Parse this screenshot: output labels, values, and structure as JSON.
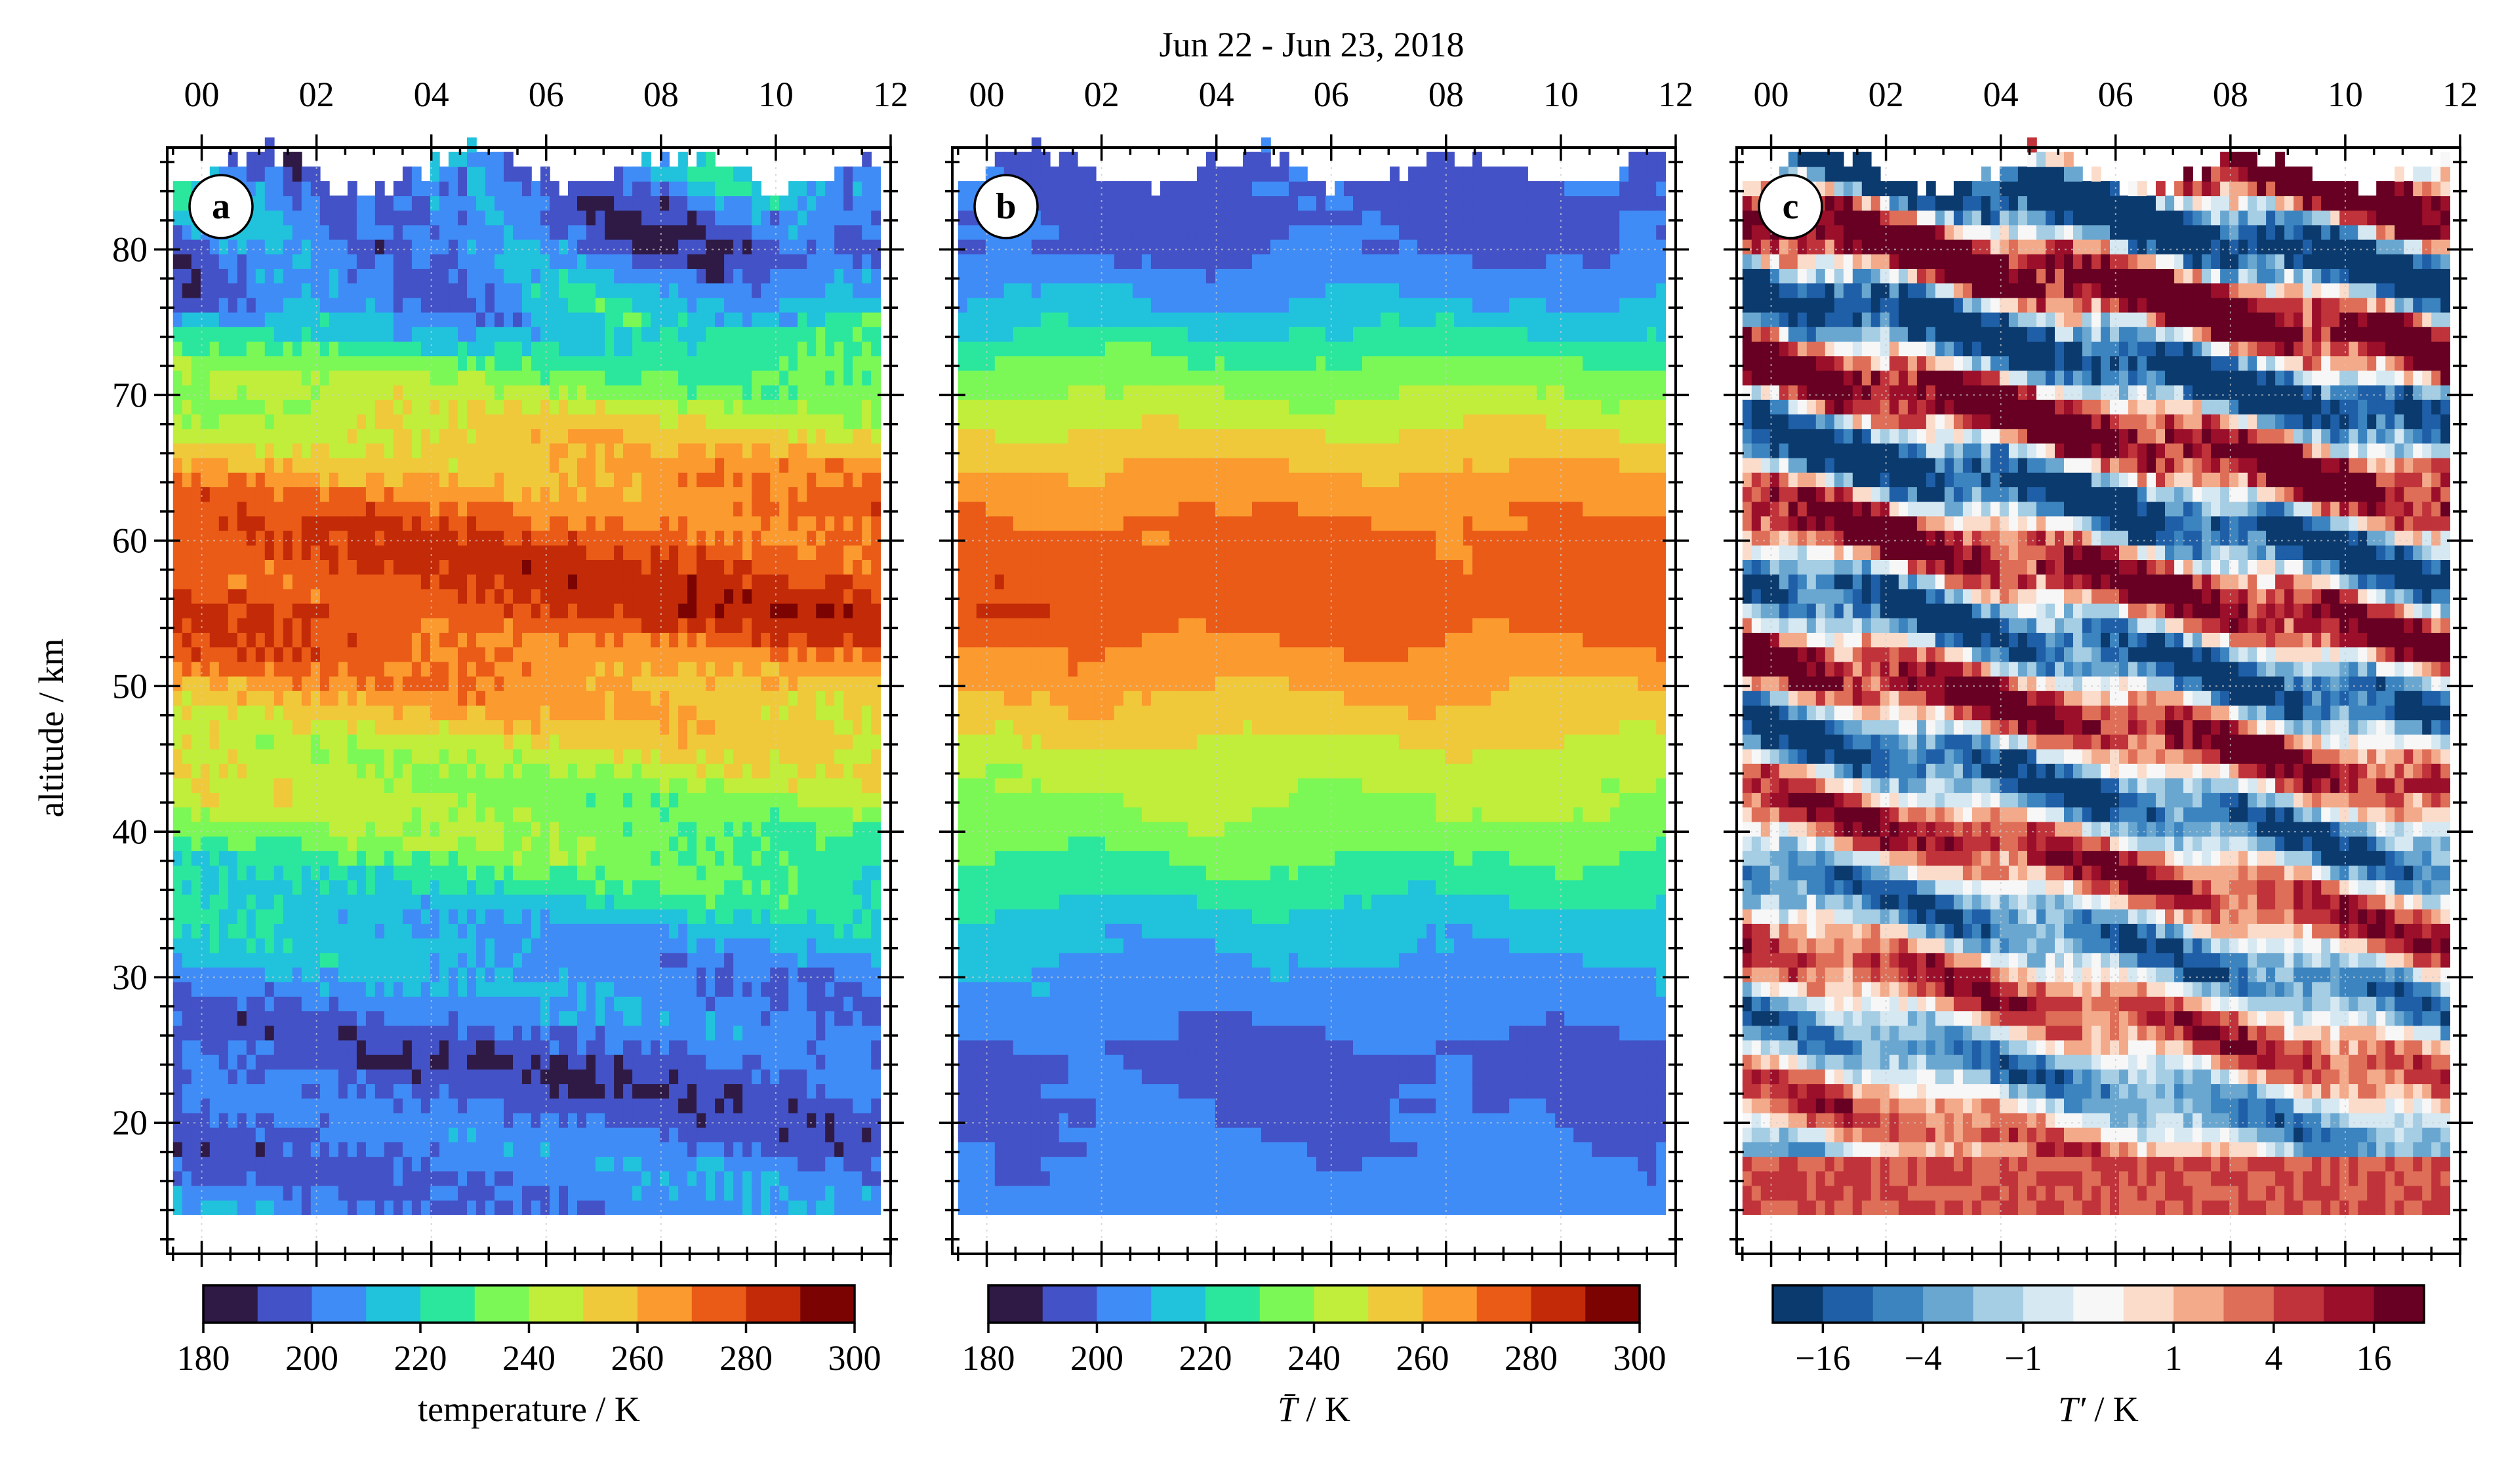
{
  "figure": {
    "title": "Jun 22 - Jun 23, 2018",
    "ylabel": "altitude / km"
  },
  "chart_data": [
    {
      "type": "heatmap",
      "panel_label": "a",
      "title": "Jun 22 - Jun 23, 2018",
      "ylabel": "altitude / km",
      "xlabel": "",
      "x_ticks": [
        "00",
        "02",
        "04",
        "06",
        "08",
        "10",
        "12"
      ],
      "x_tick_values": [
        0,
        2,
        4,
        6,
        8,
        10,
        12
      ],
      "xlim": [
        -0.6,
        12.0
      ],
      "x_data_range": [
        -0.5,
        11.8
      ],
      "y_ticks": [
        20,
        30,
        40,
        50,
        60,
        70,
        80
      ],
      "ylim": [
        11,
        87
      ],
      "grid": true,
      "fields": {
        "description_keys": [
          "altitude_km",
          "temperature_K"
        ],
        "mean_profile": [
          [
            14,
            205
          ],
          [
            18,
            200
          ],
          [
            24,
            196
          ],
          [
            29,
            205
          ],
          [
            33,
            213
          ],
          [
            37,
            226
          ],
          [
            41,
            238
          ],
          [
            45,
            246
          ],
          [
            50,
            262
          ],
          [
            55,
            282
          ],
          [
            60,
            278
          ],
          [
            64,
            266
          ],
          [
            68,
            248
          ],
          [
            72,
            232
          ],
          [
            76,
            210
          ],
          [
            80,
            198
          ],
          [
            84,
            205
          ]
        ],
        "top_altitude_km": 85
      },
      "colorbar": {
        "label": "temperature / K",
        "ticks": [
          "180",
          "200",
          "220",
          "240",
          "260",
          "280",
          "300"
        ],
        "range": [
          180,
          300
        ],
        "colors": [
          "#2e1a45",
          "#4352c6",
          "#3f8cf7",
          "#21c2dc",
          "#2be79e",
          "#7bf856",
          "#c0ee3a",
          "#f0c93b",
          "#fb9a2e",
          "#ea5b17",
          "#c32a07",
          "#7b0403"
        ]
      }
    },
    {
      "type": "heatmap",
      "panel_label": "b",
      "xlabel": "",
      "x_ticks": [
        "00",
        "02",
        "04",
        "06",
        "08",
        "10",
        "12"
      ],
      "x_tick_values": [
        0,
        2,
        4,
        6,
        8,
        10,
        12
      ],
      "xlim": [
        -0.6,
        12.0
      ],
      "x_data_range": [
        -0.5,
        11.8
      ],
      "ylim": [
        11,
        87
      ],
      "grid": true,
      "fields": {
        "description_keys": [
          "altitude_km",
          "temperature_K"
        ],
        "mean_profile": [
          [
            14,
            205
          ],
          [
            18,
            202
          ],
          [
            24,
            196
          ],
          [
            29,
            205
          ],
          [
            33,
            213
          ],
          [
            37,
            226
          ],
          [
            41,
            238
          ],
          [
            45,
            246
          ],
          [
            50,
            262
          ],
          [
            55,
            276
          ],
          [
            60,
            274
          ],
          [
            64,
            264
          ],
          [
            68,
            248
          ],
          [
            72,
            232
          ],
          [
            76,
            212
          ],
          [
            80,
            198
          ],
          [
            84,
            197
          ]
        ],
        "top_altitude_km": 85
      },
      "colorbar": {
        "label_main": "T̄",
        "label_unit": " / K",
        "ticks": [
          "180",
          "200",
          "220",
          "240",
          "260",
          "280",
          "300"
        ],
        "range": [
          180,
          300
        ],
        "colors": [
          "#2e1a45",
          "#4352c6",
          "#3f8cf7",
          "#21c2dc",
          "#2be79e",
          "#7bf856",
          "#c0ee3a",
          "#f0c93b",
          "#fb9a2e",
          "#ea5b17",
          "#c32a07",
          "#7b0403"
        ]
      }
    },
    {
      "type": "heatmap",
      "panel_label": "c",
      "xlabel": "",
      "x_ticks": [
        "00",
        "02",
        "04",
        "06",
        "08",
        "10",
        "12"
      ],
      "x_tick_values": [
        0,
        2,
        4,
        6,
        8,
        10,
        12
      ],
      "xlim": [
        -0.6,
        12.0
      ],
      "x_data_range": [
        -0.5,
        11.8
      ],
      "ylim": [
        11,
        87
      ],
      "grid": true,
      "fields": {
        "description_keys": [
          "altitude_km",
          "temperature_perturbation_K"
        ],
        "wave_vertical_wavelength_km": 10,
        "wave_phase_descent_km_per_hour": -0.8,
        "top_altitude_km": 85
      },
      "colorbar": {
        "label_main": "T′",
        "label_unit": " / K",
        "ticks": [
          "−16",
          "−4",
          "−1",
          "1",
          "4",
          "16"
        ],
        "colors": [
          "#0b3a6e",
          "#1f5fa7",
          "#3b84c0",
          "#6aa7d0",
          "#a5cde3",
          "#d6e8f2",
          "#f7f7f7",
          "#fbdccb",
          "#f3aa8a",
          "#de6e57",
          "#c0333a",
          "#9b0f2a",
          "#670022"
        ]
      }
    }
  ]
}
